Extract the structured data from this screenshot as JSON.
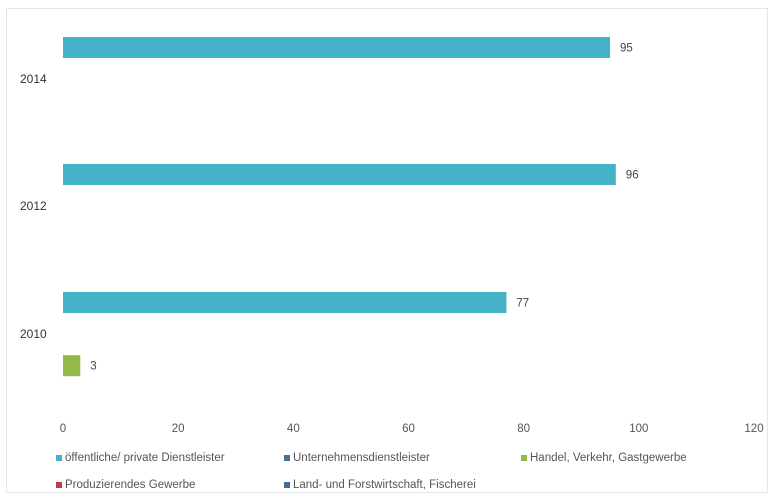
{
  "chart_data": {
    "type": "bar",
    "orientation": "horizontal",
    "categories": [
      "2014",
      "2012",
      "2010"
    ],
    "series": [
      {
        "name": "öffentliche/ private Dienstleister",
        "color": "#46b2c8",
        "values": [
          95,
          96,
          77
        ]
      },
      {
        "name": "Unternehmensdienstleister",
        "color": "#4a6e96",
        "values": [
          null,
          null,
          null
        ]
      },
      {
        "name": "Handel, Verkehr, Gastgewerbe",
        "color": "#94b84a",
        "values": [
          null,
          null,
          3
        ]
      },
      {
        "name": "Produzierendes Gewerbe",
        "color": "#c8374a",
        "values": [
          null,
          null,
          null
        ]
      },
      {
        "name": "Land- und Forstwirtschaft, Fischerei",
        "color": "#3f6e9a",
        "values": [
          null,
          null,
          null
        ]
      }
    ],
    "data_labels": [
      "95",
      "96",
      "77",
      "3"
    ],
    "xlim": [
      0,
      120
    ],
    "xticks": [
      "0",
      "20",
      "40",
      "60",
      "80",
      "100",
      "120"
    ],
    "grid": false,
    "legend_position": "bottom",
    "title": "",
    "xlabel": "",
    "ylabel": ""
  }
}
